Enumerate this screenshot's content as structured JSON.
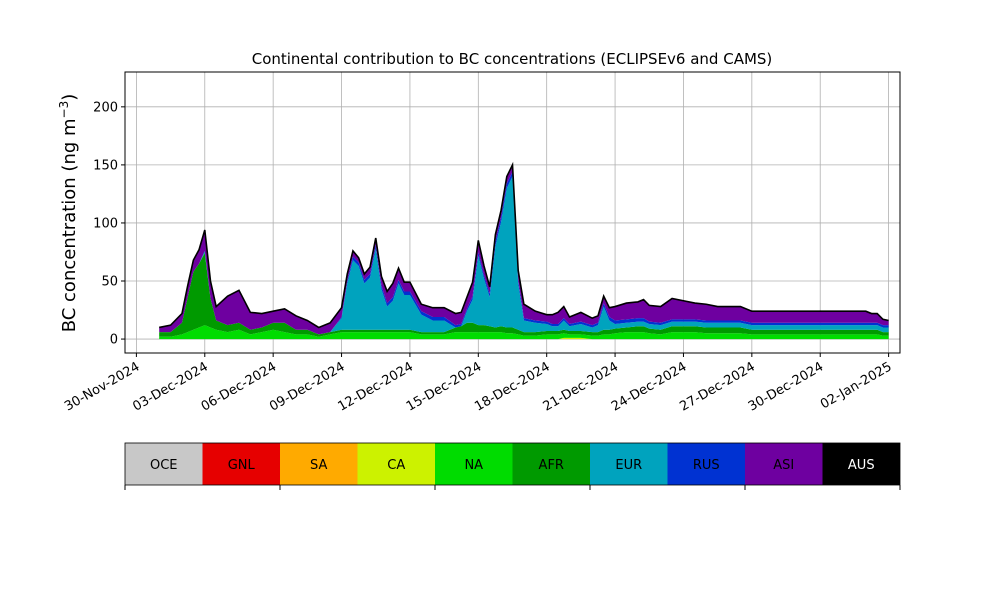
{
  "chart_data": {
    "type": "area",
    "title": "Continental contribution to BC concentrations (ECLIPSEv6 and CAMS)",
    "ylabel": "BC concentration (ng m",
    "ylabel_sup": "−3",
    "ylabel_close": ")",
    "xlabel": "",
    "ylim": [
      -12,
      230
    ],
    "yticks": [
      0,
      50,
      100,
      150,
      200
    ],
    "xlim": [
      "2024-11-29T12:00",
      "2025-01-02T12:00"
    ],
    "xticks": [
      {
        "date": "2024-11-30",
        "label": "30-Nov-2024"
      },
      {
        "date": "2024-12-03",
        "label": "03-Dec-2024"
      },
      {
        "date": "2024-12-06",
        "label": "06-Dec-2024"
      },
      {
        "date": "2024-12-09",
        "label": "09-Dec-2024"
      },
      {
        "date": "2024-12-12",
        "label": "12-Dec-2024"
      },
      {
        "date": "2024-12-15",
        "label": "15-Dec-2024"
      },
      {
        "date": "2024-12-18",
        "label": "18-Dec-2024"
      },
      {
        "date": "2024-12-21",
        "label": "21-Dec-2024"
      },
      {
        "date": "2024-12-24",
        "label": "24-Dec-2024"
      },
      {
        "date": "2024-12-27",
        "label": "27-Dec-2024"
      },
      {
        "date": "2024-12-30",
        "label": "30-Dec-2024"
      },
      {
        "date": "2025-01-02",
        "label": "02-Jan-2025"
      }
    ],
    "grid": true,
    "stack_order_bottom_to_top": [
      "OCE",
      "GNL",
      "SA",
      "CA",
      "NA",
      "AFR",
      "EUR",
      "RUS",
      "ASI",
      "AUS"
    ],
    "x": [
      "2024-12-01",
      "2024-12-01T12:00",
      "2024-12-02",
      "2024-12-02T06:00",
      "2024-12-02T12:00",
      "2024-12-02T18:00",
      "2024-12-03",
      "2024-12-03T06:00",
      "2024-12-03T12:00",
      "2024-12-04",
      "2024-12-04T12:00",
      "2024-12-05",
      "2024-12-05T12:00",
      "2024-12-06",
      "2024-12-06T12:00",
      "2024-12-07",
      "2024-12-07T12:00",
      "2024-12-08",
      "2024-12-08T12:00",
      "2024-12-09",
      "2024-12-09T06:00",
      "2024-12-09T12:00",
      "2024-12-09T18:00",
      "2024-12-10",
      "2024-12-10T06:00",
      "2024-12-10T12:00",
      "2024-12-10T18:00",
      "2024-12-11",
      "2024-12-11T06:00",
      "2024-12-11T12:00",
      "2024-12-11T18:00",
      "2024-12-12",
      "2024-12-12T12:00",
      "2024-12-13",
      "2024-12-13T12:00",
      "2024-12-14",
      "2024-12-14T06:00",
      "2024-12-14T12:00",
      "2024-12-14T18:00",
      "2024-12-15",
      "2024-12-15T06:00",
      "2024-12-15T12:00",
      "2024-12-15T18:00",
      "2024-12-16",
      "2024-12-16T06:00",
      "2024-12-16T12:00",
      "2024-12-16T18:00",
      "2024-12-17",
      "2024-12-17T12:00",
      "2024-12-18",
      "2024-12-18T06:00",
      "2024-12-18T12:00",
      "2024-12-18T18:00",
      "2024-12-19",
      "2024-12-19T12:00",
      "2024-12-20",
      "2024-12-20T06:00",
      "2024-12-20T12:00",
      "2024-12-20T18:00",
      "2024-12-21",
      "2024-12-21T12:00",
      "2024-12-22",
      "2024-12-22T06:00",
      "2024-12-22T12:00",
      "2024-12-23",
      "2024-12-23T12:00",
      "2024-12-24",
      "2024-12-24T12:00",
      "2024-12-25",
      "2024-12-25T12:00",
      "2024-12-26",
      "2024-12-26T12:00",
      "2024-12-27",
      "2024-12-27T12:00",
      "2024-12-28",
      "2024-12-28T12:00",
      "2024-12-29",
      "2024-12-29T12:00",
      "2024-12-30",
      "2024-12-30T12:00",
      "2024-12-31",
      "2024-12-31T12:00",
      "2025-01-01",
      "2025-01-01T06:00",
      "2025-01-01T12:00",
      "2025-01-01T18:00",
      "2025-01-02"
    ],
    "series": [
      {
        "name": "OCE",
        "values": [
          0,
          0,
          0,
          0,
          0,
          0,
          0,
          0,
          0,
          0,
          0,
          0,
          0,
          0,
          0,
          0,
          0,
          0,
          0,
          0,
          0,
          0,
          0,
          0,
          0,
          0,
          0,
          0,
          0,
          0,
          0,
          0,
          0,
          0,
          0,
          0,
          0,
          0,
          0,
          0,
          0,
          0,
          0,
          0,
          0,
          0,
          0,
          0,
          0,
          0,
          0,
          0,
          0,
          0,
          0,
          0,
          0,
          0,
          0,
          0,
          0,
          0,
          0,
          0,
          0,
          0,
          0,
          0,
          0,
          0,
          0,
          0,
          0,
          0,
          0,
          0,
          0,
          0,
          0,
          0,
          0,
          0,
          0,
          0,
          0,
          0,
          0
        ]
      },
      {
        "name": "GNL",
        "values": [
          0,
          0,
          0,
          0,
          0,
          0,
          0,
          0,
          0,
          0,
          0,
          0,
          0,
          0,
          0,
          0,
          0,
          0,
          0,
          0,
          0,
          0,
          0,
          0,
          0,
          0,
          0,
          0,
          0,
          0,
          0,
          0,
          0,
          0,
          0,
          0,
          0,
          0,
          0,
          0,
          0,
          0,
          0,
          0,
          0,
          0,
          0,
          0,
          0,
          0,
          0,
          0,
          0,
          0,
          0,
          0,
          0,
          0,
          0,
          0,
          0,
          0,
          0,
          0,
          0,
          0,
          0,
          0,
          0,
          0,
          0,
          0,
          0,
          0,
          0,
          0,
          0,
          0,
          0,
          0,
          0,
          0,
          0,
          0,
          0,
          0,
          0
        ]
      },
      {
        "name": "SA",
        "values": [
          0,
          0,
          0,
          0,
          0,
          0,
          0,
          0,
          0,
          0,
          0,
          0,
          0,
          0,
          0,
          0,
          0,
          0,
          0,
          0,
          0,
          0,
          0,
          0,
          0,
          0,
          0,
          0,
          0,
          0,
          0,
          0,
          0,
          0,
          0,
          0,
          0,
          0,
          0,
          0,
          0,
          0,
          0,
          0,
          0,
          0,
          0,
          0,
          0,
          0,
          0,
          0,
          0,
          0,
          0,
          0,
          0,
          0,
          0,
          0,
          0,
          0,
          0,
          0,
          0,
          0,
          0,
          0,
          0,
          0,
          0,
          0,
          0,
          0,
          0,
          0,
          0,
          0,
          0,
          0,
          0,
          0,
          0,
          0,
          0,
          0,
          0
        ]
      },
      {
        "name": "CA",
        "values": [
          0,
          0,
          0,
          0,
          0,
          0,
          0,
          0,
          0,
          0,
          0,
          0,
          0,
          0,
          0,
          0,
          0,
          0,
          0,
          0,
          0,
          0,
          0,
          0,
          0,
          0,
          0,
          0,
          0,
          0,
          0,
          0,
          0,
          0,
          0,
          0,
          0,
          0,
          0,
          0,
          0,
          0,
          0,
          0,
          0,
          0,
          0,
          0,
          0,
          0,
          0,
          0,
          1,
          1,
          1,
          0,
          0,
          0,
          0,
          0,
          0,
          0,
          0,
          0,
          0,
          0,
          0,
          0,
          0,
          0,
          0,
          0,
          0,
          0,
          0,
          0,
          0,
          0,
          0,
          0,
          0,
          0,
          0,
          0,
          0,
          0,
          0
        ]
      },
      {
        "name": "NA",
        "values": [
          2,
          2,
          4,
          6,
          8,
          10,
          12,
          10,
          8,
          6,
          8,
          4,
          6,
          8,
          6,
          4,
          4,
          2,
          4,
          6,
          6,
          6,
          6,
          6,
          6,
          6,
          6,
          6,
          6,
          6,
          6,
          6,
          4,
          4,
          4,
          6,
          6,
          6,
          6,
          6,
          6,
          6,
          6,
          6,
          5,
          5,
          4,
          3,
          3,
          4,
          4,
          4,
          4,
          3,
          3,
          3,
          3,
          4,
          4,
          5,
          6,
          6,
          6,
          5,
          4,
          6,
          6,
          6,
          5,
          5,
          5,
          5,
          4,
          4,
          4,
          4,
          4,
          4,
          4,
          4,
          4,
          4,
          4,
          4,
          4,
          3,
          3
        ]
      },
      {
        "name": "AFR",
        "values": [
          4,
          4,
          10,
          30,
          50,
          55,
          62,
          25,
          8,
          6,
          6,
          4,
          4,
          6,
          8,
          4,
          4,
          2,
          2,
          2,
          2,
          2,
          2,
          2,
          2,
          2,
          2,
          2,
          2,
          2,
          2,
          2,
          2,
          2,
          2,
          4,
          5,
          8,
          8,
          6,
          6,
          5,
          4,
          5,
          5,
          5,
          4,
          3,
          3,
          3,
          3,
          3,
          3,
          3,
          3,
          3,
          3,
          4,
          4,
          4,
          4,
          5,
          5,
          4,
          4,
          5,
          5,
          5,
          5,
          5,
          5,
          5,
          4,
          4,
          4,
          4,
          4,
          4,
          4,
          4,
          4,
          4,
          4,
          4,
          4,
          3,
          3
        ]
      },
      {
        "name": "EUR",
        "values": [
          0,
          0,
          0,
          0,
          0,
          0,
          2,
          0,
          0,
          0,
          0,
          0,
          0,
          0,
          0,
          0,
          0,
          0,
          0,
          10,
          40,
          60,
          55,
          40,
          45,
          70,
          35,
          20,
          25,
          40,
          30,
          30,
          15,
          10,
          10,
          0,
          0,
          10,
          20,
          60,
          40,
          25,
          70,
          90,
          120,
          130,
          40,
          10,
          8,
          6,
          4,
          4,
          8,
          4,
          6,
          4,
          6,
          20,
          8,
          4,
          4,
          4,
          4,
          4,
          4,
          4,
          4,
          4,
          4,
          4,
          4,
          4,
          4,
          4,
          4,
          4,
          4,
          4,
          4,
          4,
          4,
          4,
          4,
          4,
          4,
          4,
          4
        ]
      },
      {
        "name": "RUS",
        "values": [
          0,
          0,
          0,
          0,
          0,
          0,
          0,
          0,
          0,
          0,
          0,
          0,
          0,
          0,
          0,
          0,
          0,
          0,
          0,
          1,
          2,
          3,
          3,
          3,
          3,
          3,
          3,
          3,
          3,
          3,
          3,
          3,
          3,
          3,
          3,
          2,
          2,
          2,
          3,
          3,
          3,
          3,
          4,
          4,
          4,
          4,
          3,
          2,
          2,
          2,
          2,
          2,
          2,
          2,
          2,
          2,
          2,
          3,
          3,
          3,
          3,
          3,
          3,
          2,
          2,
          2,
          2,
          2,
          2,
          2,
          2,
          2,
          2,
          2,
          2,
          2,
          2,
          2,
          2,
          2,
          2,
          2,
          2,
          2,
          2,
          2,
          2
        ]
      },
      {
        "name": "ASI",
        "values": [
          4,
          6,
          8,
          10,
          10,
          12,
          18,
          15,
          12,
          25,
          28,
          15,
          12,
          10,
          12,
          12,
          8,
          6,
          8,
          8,
          6,
          5,
          4,
          5,
          6,
          6,
          8,
          10,
          12,
          10,
          8,
          8,
          6,
          8,
          8,
          10,
          10,
          10,
          12,
          10,
          8,
          6,
          6,
          6,
          6,
          6,
          8,
          12,
          8,
          6,
          8,
          10,
          10,
          6,
          8,
          6,
          6,
          6,
          8,
          12,
          14,
          14,
          16,
          14,
          14,
          18,
          16,
          14,
          14,
          12,
          12,
          12,
          10,
          10,
          10,
          10,
          10,
          10,
          10,
          10,
          10,
          10,
          10,
          8,
          8,
          5,
          4
        ]
      },
      {
        "name": "AUS",
        "values": [
          0,
          0,
          0,
          0,
          0,
          0,
          0,
          0,
          0,
          0,
          0,
          0,
          0,
          0,
          0,
          0,
          0,
          0,
          0,
          0,
          0,
          0,
          0,
          0,
          0,
          0,
          0,
          0,
          0,
          0,
          0,
          0,
          0,
          0,
          0,
          0,
          0,
          0,
          0,
          0,
          0,
          0,
          0,
          0,
          0,
          0,
          0,
          0,
          0,
          0,
          0,
          0,
          0,
          0,
          0,
          0,
          0,
          0,
          0,
          0,
          0,
          0,
          0,
          0,
          0,
          0,
          0,
          0,
          0,
          0,
          0,
          0,
          0,
          0,
          0,
          0,
          0,
          0,
          0,
          0,
          0,
          0,
          0,
          0,
          0,
          0,
          0
        ]
      }
    ],
    "total_line_color": "#000000"
  },
  "legend": {
    "items": [
      {
        "code": "OCE",
        "color": "#c8c8c8"
      },
      {
        "code": "GNL",
        "color": "#e60000"
      },
      {
        "code": "SA",
        "color": "#ffaa00"
      },
      {
        "code": "CA",
        "color": "#ccf200"
      },
      {
        "code": "NA",
        "color": "#00dc00"
      },
      {
        "code": "AFR",
        "color": "#009a00"
      },
      {
        "code": "EUR",
        "color": "#00a3be"
      },
      {
        "code": "RUS",
        "color": "#0032d2"
      },
      {
        "code": "ASI",
        "color": "#6e00a0"
      },
      {
        "code": "AUS",
        "color": "#000000",
        "text_color": "#ffffff"
      }
    ]
  }
}
